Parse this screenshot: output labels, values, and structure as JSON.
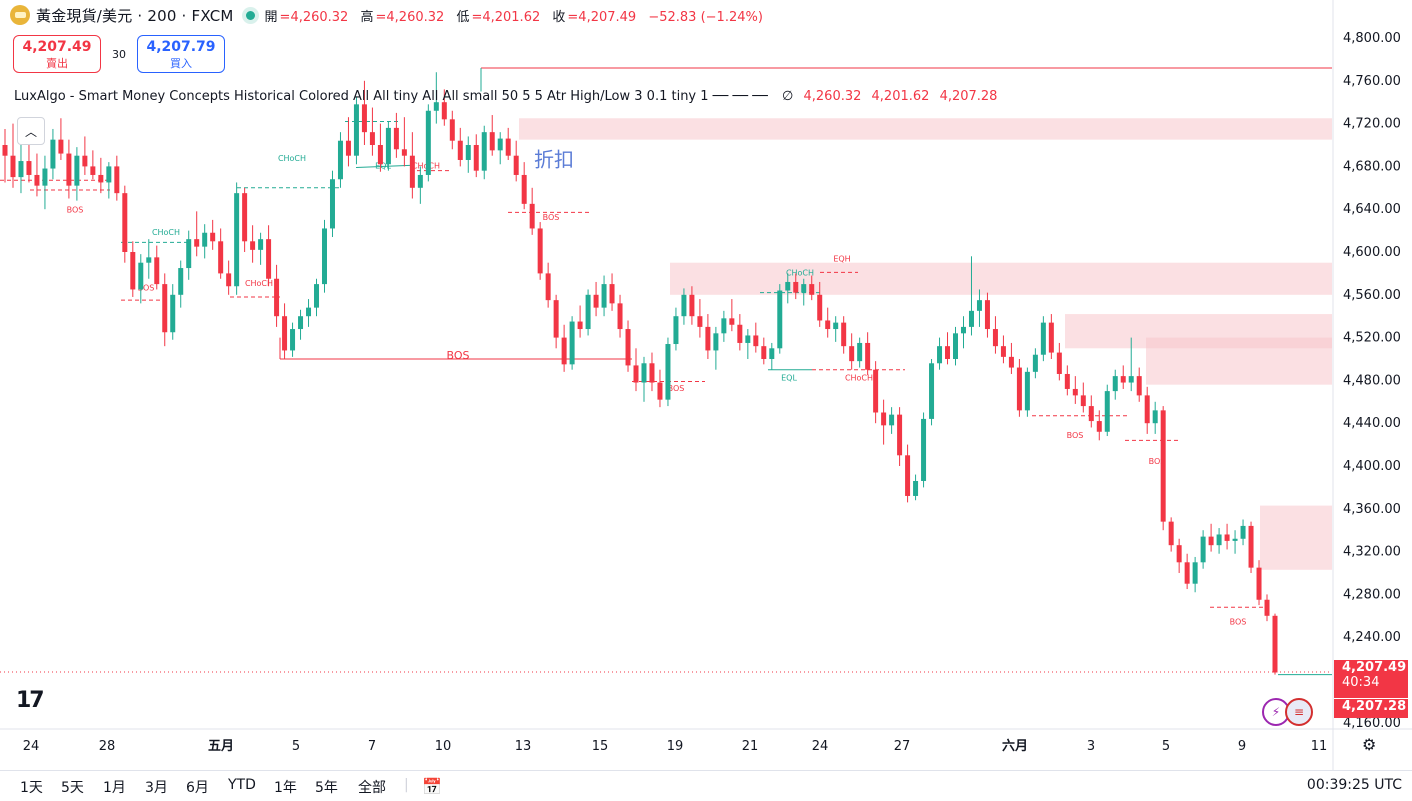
{
  "header": {
    "symbol": "黃金現貨/美元 · 200 · FXCM",
    "open_label": "開",
    "open": "=4,260.32",
    "high_label": "高",
    "high": "=4,260.32",
    "low_label": "低",
    "low": "=4,201.62",
    "close_label": "收",
    "close": "=4,207.49",
    "change": "−52.83 (−1.24%)"
  },
  "trade": {
    "sell_price": "4,207.49",
    "sell_label": "賣出",
    "spread": "30",
    "buy_price": "4,207.79",
    "buy_label": "買入"
  },
  "indicator": {
    "name": "LuxAlgo - Smart Money Concepts Historical Colored All All tiny All All small 50 5 5 Atr High/Low 3 0.1 tiny 1 ── ── ──",
    "null_symbol": "∅",
    "v1": "4,260.32",
    "v2": "4,201.62",
    "v3": "4,207.28"
  },
  "price_axis": {
    "ticks": [
      "4,800.00",
      "4,760.00",
      "4,720.00",
      "4,680.00",
      "4,640.00",
      "4,600.00",
      "4,560.00",
      "4,520.00",
      "4,480.00",
      "4,440.00",
      "4,400.00",
      "4,360.00",
      "4,320.00",
      "4,280.00",
      "4,240.00",
      "4,200.00",
      "4,160.00"
    ],
    "last_price": "4,207.49",
    "countdown": "40:34",
    "indicator_price": "4,207.28"
  },
  "time_axis": {
    "labels": [
      "24",
      "28",
      "五月",
      "5",
      "7",
      "10",
      "13",
      "15",
      "19",
      "21",
      "24",
      "27",
      "六月",
      "3",
      "5",
      "9",
      "11"
    ]
  },
  "timeframes": [
    "1天",
    "5天",
    "1月",
    "3月",
    "6月",
    "YTD",
    "1年",
    "5年",
    "全部"
  ],
  "clock": "00:39:25 UTC",
  "annotation_text": "折扣",
  "smc_labels": [
    "BOS",
    "CHoCH",
    "BOS",
    "CHoCH",
    "CHoCH",
    "EQL",
    "CHoCH",
    "BOS",
    "BOS",
    "BOS",
    "CHoCH",
    "EQH",
    "EQL",
    "CHoCH",
    "BOS",
    "BOS",
    "BOS"
  ],
  "colors": {
    "up": "#22ab94",
    "down": "#f23645",
    "zone": "#f7c6cc"
  },
  "chart_data": {
    "type": "candlestick",
    "title": "黃金現貨/美元 · 200 · FXCM",
    "ylim": [
      4160,
      4800
    ],
    "series": [
      {
        "values": [
          [
            4700,
            4715,
            4665,
            4690
          ],
          [
            4690,
            4720,
            4660,
            4670
          ],
          [
            4670,
            4700,
            4655,
            4685
          ],
          [
            4685,
            4710,
            4665,
            4672
          ],
          [
            4672,
            4692,
            4652,
            4662
          ],
          [
            4662,
            4690,
            4640,
            4678
          ],
          [
            4678,
            4715,
            4668,
            4705
          ],
          [
            4705,
            4725,
            4686,
            4692
          ],
          [
            4692,
            4705,
            4650,
            4662
          ],
          [
            4662,
            4698,
            4648,
            4690
          ],
          [
            4690,
            4708,
            4672,
            4680
          ],
          [
            4680,
            4695,
            4668,
            4672
          ],
          [
            4672,
            4688,
            4655,
            4665
          ],
          [
            4665,
            4684,
            4650,
            4680
          ],
          [
            4680,
            4690,
            4648,
            4655
          ],
          [
            4655,
            4662,
            4590,
            4600
          ],
          [
            4600,
            4610,
            4558,
            4565
          ],
          [
            4565,
            4598,
            4552,
            4590
          ],
          [
            4590,
            4612,
            4575,
            4595
          ],
          [
            4595,
            4606,
            4565,
            4570
          ],
          [
            4570,
            4580,
            4512,
            4525
          ],
          [
            4525,
            4570,
            4518,
            4560
          ],
          [
            4560,
            4592,
            4548,
            4585
          ],
          [
            4585,
            4620,
            4574,
            4612
          ],
          [
            4612,
            4638,
            4596,
            4605
          ],
          [
            4605,
            4626,
            4594,
            4618
          ],
          [
            4618,
            4630,
            4602,
            4610
          ],
          [
            4610,
            4622,
            4575,
            4580
          ],
          [
            4580,
            4592,
            4560,
            4568
          ],
          [
            4568,
            4665,
            4560,
            4655
          ],
          [
            4655,
            4660,
            4600,
            4610
          ],
          [
            4610,
            4625,
            4590,
            4602
          ],
          [
            4602,
            4618,
            4588,
            4612
          ],
          [
            4612,
            4625,
            4568,
            4575
          ],
          [
            4575,
            4588,
            4530,
            4540
          ],
          [
            4540,
            4552,
            4500,
            4508
          ],
          [
            4508,
            4534,
            4502,
            4528
          ],
          [
            4528,
            4546,
            4518,
            4540
          ],
          [
            4540,
            4556,
            4530,
            4548
          ],
          [
            4548,
            4575,
            4540,
            4570
          ],
          [
            4570,
            4630,
            4562,
            4622
          ],
          [
            4622,
            4676,
            4614,
            4668
          ],
          [
            4668,
            4712,
            4660,
            4704
          ],
          [
            4704,
            4726,
            4680,
            4690
          ],
          [
            4690,
            4745,
            4682,
            4738
          ],
          [
            4738,
            4760,
            4700,
            4712
          ],
          [
            4712,
            4735,
            4690,
            4700
          ],
          [
            4700,
            4720,
            4675,
            4682
          ],
          [
            4682,
            4722,
            4676,
            4716
          ],
          [
            4716,
            4730,
            4688,
            4696
          ],
          [
            4696,
            4726,
            4680,
            4690
          ],
          [
            4690,
            4712,
            4650,
            4660
          ],
          [
            4660,
            4680,
            4645,
            4672
          ],
          [
            4672,
            4738,
            4666,
            4732
          ],
          [
            4732,
            4768,
            4720,
            4740
          ],
          [
            4740,
            4752,
            4718,
            4724
          ],
          [
            4724,
            4732,
            4696,
            4704
          ],
          [
            4704,
            4716,
            4680,
            4686
          ],
          [
            4686,
            4708,
            4674,
            4700
          ],
          [
            4700,
            4710,
            4670,
            4676
          ],
          [
            4676,
            4718,
            4668,
            4712
          ],
          [
            4712,
            4728,
            4690,
            4695
          ],
          [
            4695,
            4712,
            4682,
            4706
          ],
          [
            4706,
            4716,
            4686,
            4690
          ],
          [
            4690,
            4704,
            4666,
            4672
          ],
          [
            4672,
            4684,
            4640,
            4645
          ],
          [
            4645,
            4660,
            4616,
            4622
          ],
          [
            4622,
            4628,
            4574,
            4580
          ],
          [
            4580,
            4590,
            4548,
            4555
          ],
          [
            4555,
            4560,
            4510,
            4520
          ],
          [
            4520,
            4532,
            4488,
            4495
          ],
          [
            4495,
            4540,
            4490,
            4535
          ],
          [
            4535,
            4550,
            4520,
            4528
          ],
          [
            4528,
            4565,
            4522,
            4560
          ],
          [
            4560,
            4572,
            4540,
            4548
          ],
          [
            4548,
            4578,
            4540,
            4570
          ],
          [
            4570,
            4580,
            4545,
            4552
          ],
          [
            4552,
            4560,
            4520,
            4528
          ],
          [
            4528,
            4536,
            4488,
            4494
          ],
          [
            4494,
            4510,
            4470,
            4478
          ],
          [
            4478,
            4502,
            4460,
            4496
          ],
          [
            4496,
            4506,
            4470,
            4478
          ],
          [
            4478,
            4490,
            4455,
            4462
          ],
          [
            4462,
            4520,
            4456,
            4514
          ],
          [
            4514,
            4548,
            4508,
            4540
          ],
          [
            4540,
            4566,
            4532,
            4560
          ],
          [
            4560,
            4568,
            4532,
            4540
          ],
          [
            4540,
            4556,
            4520,
            4530
          ],
          [
            4530,
            4542,
            4500,
            4508
          ],
          [
            4508,
            4530,
            4490,
            4524
          ],
          [
            4524,
            4545,
            4516,
            4538
          ],
          [
            4538,
            4556,
            4526,
            4532
          ],
          [
            4532,
            4542,
            4508,
            4515
          ],
          [
            4515,
            4528,
            4500,
            4522
          ],
          [
            4522,
            4534,
            4506,
            4512
          ],
          [
            4512,
            4520,
            4495,
            4500
          ],
          [
            4500,
            4515,
            4490,
            4510
          ],
          [
            4510,
            4570,
            4505,
            4564
          ],
          [
            4564,
            4580,
            4552,
            4572
          ],
          [
            4572,
            4580,
            4556,
            4562
          ],
          [
            4562,
            4575,
            4550,
            4570
          ],
          [
            4570,
            4578,
            4555,
            4560
          ],
          [
            4560,
            4572,
            4530,
            4536
          ],
          [
            4536,
            4548,
            4520,
            4528
          ],
          [
            4528,
            4540,
            4516,
            4534
          ],
          [
            4534,
            4540,
            4505,
            4512
          ],
          [
            4512,
            4524,
            4490,
            4498
          ],
          [
            4498,
            4520,
            4492,
            4515
          ],
          [
            4515,
            4525,
            4485,
            4490
          ],
          [
            4490,
            4498,
            4440,
            4450
          ],
          [
            4450,
            4462,
            4420,
            4438
          ],
          [
            4438,
            4455,
            4430,
            4448
          ],
          [
            4448,
            4455,
            4400,
            4410
          ],
          [
            4410,
            4420,
            4366,
            4372
          ],
          [
            4372,
            4392,
            4368,
            4386
          ],
          [
            4386,
            4450,
            4380,
            4444
          ],
          [
            4444,
            4500,
            4438,
            4496
          ],
          [
            4496,
            4520,
            4490,
            4512
          ],
          [
            4512,
            4525,
            4495,
            4500
          ],
          [
            4500,
            4530,
            4494,
            4524
          ],
          [
            4524,
            4540,
            4510,
            4530
          ],
          [
            4530,
            4596,
            4522,
            4545
          ],
          [
            4545,
            4565,
            4530,
            4555
          ],
          [
            4555,
            4562,
            4520,
            4528
          ],
          [
            4528,
            4540,
            4505,
            4512
          ],
          [
            4512,
            4522,
            4496,
            4502
          ],
          [
            4502,
            4515,
            4486,
            4492
          ],
          [
            4492,
            4500,
            4446,
            4452
          ],
          [
            4452,
            4492,
            4446,
            4488
          ],
          [
            4488,
            4510,
            4482,
            4504
          ],
          [
            4504,
            4540,
            4498,
            4534
          ],
          [
            4534,
            4542,
            4500,
            4506
          ],
          [
            4506,
            4515,
            4480,
            4486
          ],
          [
            4486,
            4494,
            4466,
            4472
          ],
          [
            4472,
            4484,
            4458,
            4466
          ],
          [
            4466,
            4478,
            4450,
            4456
          ],
          [
            4456,
            4466,
            4436,
            4442
          ],
          [
            4442,
            4452,
            4424,
            4432
          ],
          [
            4432,
            4476,
            4428,
            4470
          ],
          [
            4470,
            4490,
            4462,
            4484
          ],
          [
            4484,
            4494,
            4472,
            4478
          ],
          [
            4478,
            4520,
            4470,
            4484
          ],
          [
            4484,
            4492,
            4460,
            4466
          ],
          [
            4466,
            4474,
            4430,
            4440
          ],
          [
            4440,
            4460,
            4430,
            4452
          ],
          [
            4452,
            4456,
            4340,
            4348
          ],
          [
            4348,
            4352,
            4320,
            4326
          ],
          [
            4326,
            4332,
            4300,
            4310
          ],
          [
            4310,
            4318,
            4285,
            4290
          ],
          [
            4290,
            4315,
            4282,
            4310
          ],
          [
            4310,
            4340,
            4304,
            4334
          ],
          [
            4334,
            4346,
            4320,
            4326
          ],
          [
            4326,
            4342,
            4318,
            4336
          ],
          [
            4336,
            4346,
            4322,
            4330
          ],
          [
            4330,
            4340,
            4318,
            4332
          ],
          [
            4332,
            4350,
            4326,
            4344
          ],
          [
            4344,
            4348,
            4300,
            4305
          ],
          [
            4305,
            4312,
            4270,
            4275
          ],
          [
            4275,
            4280,
            4255,
            4260
          ],
          [
            4260,
            4262,
            4205,
            4207
          ]
        ]
      }
    ]
  }
}
